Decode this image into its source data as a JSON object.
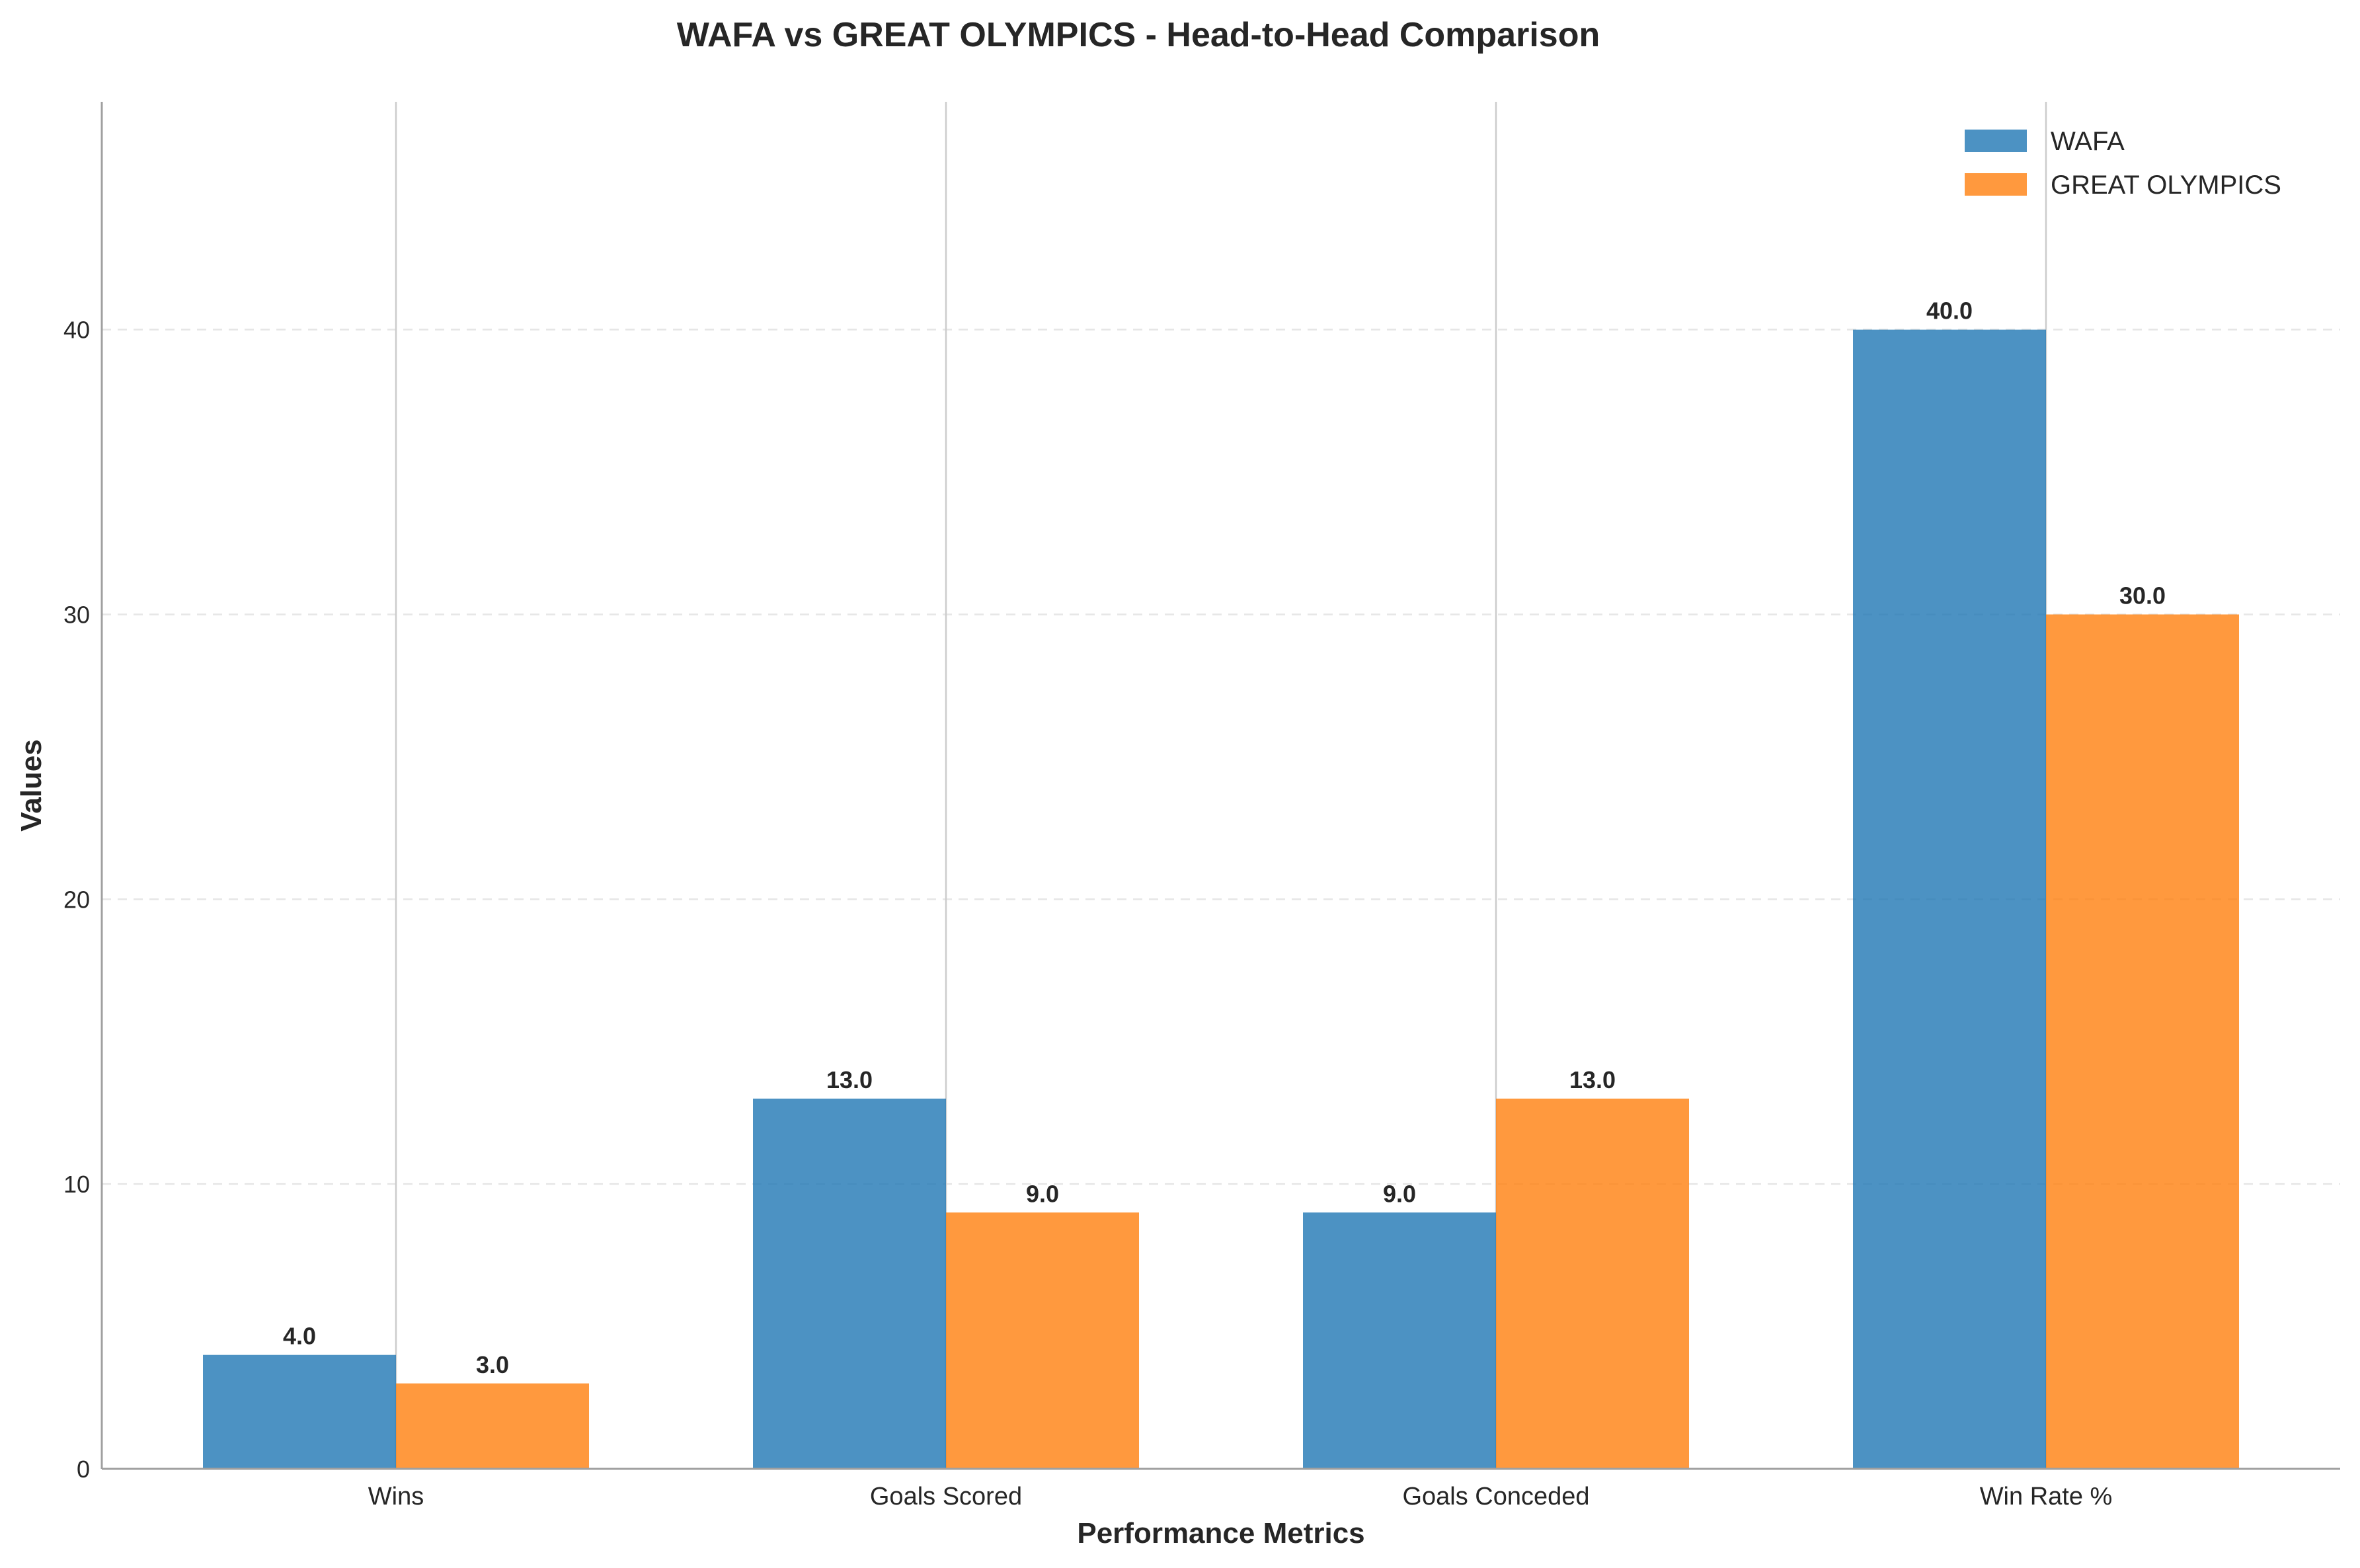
{
  "chart_data": {
    "type": "bar",
    "title": "WAFA vs GREAT OLYMPICS - Head-to-Head Comparison",
    "xlabel": "Performance Metrics",
    "ylabel": "Values",
    "categories": [
      "Wins",
      "Goals Scored",
      "Goals Conceded",
      "Win Rate %"
    ],
    "series": [
      {
        "name": "WAFA",
        "color": "#1f77b4",
        "values": [
          4.0,
          13.0,
          9.0,
          40.0
        ],
        "labels": [
          "4.0",
          "13.0",
          "9.0",
          "40.0"
        ]
      },
      {
        "name": "GREAT OLYMPICS",
        "color": "#ff7f0e",
        "values": [
          3.0,
          9.0,
          13.0,
          30.0
        ],
        "labels": [
          "3.0",
          "9.0",
          "13.0",
          "30.0"
        ]
      }
    ],
    "ylim": [
      0,
      48
    ],
    "yticks": [
      0,
      10,
      20,
      30,
      40
    ],
    "ytick_labels": [
      "0",
      "10",
      "20",
      "30",
      "40"
    ],
    "grid": "y-dashed",
    "legend_position": "top-right"
  }
}
